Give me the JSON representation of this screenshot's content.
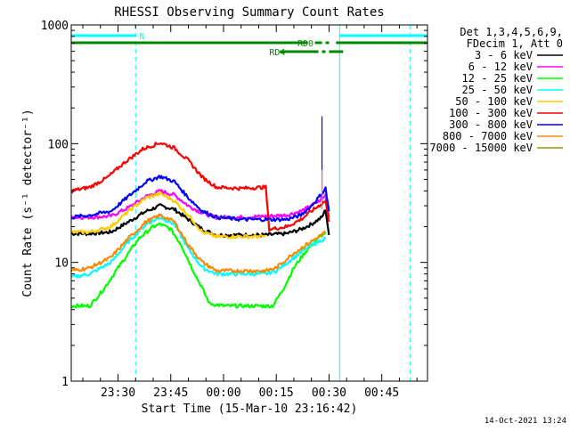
{
  "chart_data": {
    "type": "line",
    "title": "RHESSI Observing Summary Count Rates",
    "xlabel": "Start Time (15-Mar-10 23:16:42)",
    "ylabel": "Count Rate (s⁻¹ detector⁻¹)",
    "y_scale": "log",
    "ylim": [
      1,
      1000
    ],
    "y_ticks": [
      {
        "value": 1,
        "label": "1"
      },
      {
        "value": 10,
        "label": "10"
      },
      {
        "value": 100,
        "label": "100"
      },
      {
        "value": 1000,
        "label": "1000"
      }
    ],
    "xlim": [
      "23:16:42",
      "00:58:00"
    ],
    "x_ticks": [
      "23:30",
      "23:45",
      "00:00",
      "00:15",
      "00:30",
      "00:45"
    ],
    "x_minor_ticks": [
      "23:20",
      "23:25",
      "23:35",
      "23:40",
      "23:50",
      "23:55",
      "00:05",
      "00:10",
      "00:20",
      "00:25",
      "00:35",
      "00:40",
      "00:50",
      "00:55"
    ],
    "grid": false,
    "legend_position": "right",
    "legend_header": [
      "Det 1,3,4,5,6,9,",
      "FDecim 1, Att 0"
    ],
    "series": [
      {
        "name": "3 - 6 keV",
        "color": "#000000",
        "points": [
          [
            "23:16:42",
            17.5
          ],
          [
            "23:22",
            17.5
          ],
          [
            "23:28",
            18
          ],
          [
            "23:33",
            22
          ],
          [
            "23:38",
            27
          ],
          [
            "23:42",
            30
          ],
          [
            "23:46",
            28
          ],
          [
            "23:50",
            23
          ],
          [
            "23:54",
            19
          ],
          [
            "23:58",
            17
          ],
          [
            "00:05",
            17
          ],
          [
            "00:12",
            17
          ],
          [
            "00:18",
            17.5
          ],
          [
            "00:22",
            19
          ],
          [
            "00:25",
            21
          ],
          [
            "00:28",
            24
          ],
          [
            "00:29",
            28
          ],
          [
            "00:30",
            17
          ]
        ]
      },
      {
        "name": "6 - 12 keV",
        "color": "#ff00ff",
        "points": [
          [
            "23:16:42",
            24
          ],
          [
            "23:22",
            24
          ],
          [
            "23:28",
            24.5
          ],
          [
            "23:33",
            29
          ],
          [
            "23:38",
            36
          ],
          [
            "23:42",
            40
          ],
          [
            "23:46",
            37
          ],
          [
            "23:50",
            30
          ],
          [
            "23:54",
            26
          ],
          [
            "23:58",
            24
          ],
          [
            "00:05",
            24
          ],
          [
            "00:12",
            24.5
          ],
          [
            "00:18",
            25
          ],
          [
            "00:22",
            27
          ],
          [
            "00:25",
            30
          ],
          [
            "00:28",
            34
          ],
          [
            "00:29",
            37
          ],
          [
            "00:30",
            24
          ]
        ]
      },
      {
        "name": "12 - 25 keV",
        "color": "#00ff00",
        "points": [
          [
            "23:16:42",
            4.3
          ],
          [
            "23:22",
            4.3
          ],
          [
            "23:26",
            6
          ],
          [
            "23:30",
            9
          ],
          [
            "23:33",
            12
          ],
          [
            "23:36",
            16
          ],
          [
            "23:40",
            20
          ],
          [
            "23:42",
            21
          ],
          [
            "23:45",
            19
          ],
          [
            "23:48",
            14
          ],
          [
            "23:51",
            9
          ],
          [
            "23:54",
            6
          ],
          [
            "23:56",
            4.5
          ],
          [
            "00:00",
            4.3
          ],
          [
            "00:08",
            4.3
          ],
          [
            "00:14",
            4.3
          ],
          [
            "00:17",
            6
          ],
          [
            "00:20",
            9
          ],
          [
            "00:23",
            12
          ],
          [
            "00:26",
            15
          ],
          [
            "00:29",
            18
          ]
        ]
      },
      {
        "name": "25 - 50 keV",
        "color": "#00ffff",
        "points": [
          [
            "23:16:42",
            7.5
          ],
          [
            "23:22",
            8
          ],
          [
            "23:28",
            10
          ],
          [
            "23:33",
            15
          ],
          [
            "23:38",
            21
          ],
          [
            "23:42",
            24
          ],
          [
            "23:46",
            21
          ],
          [
            "23:50",
            13
          ],
          [
            "23:54",
            9
          ],
          [
            "23:58",
            8
          ],
          [
            "00:05",
            8
          ],
          [
            "00:12",
            8
          ],
          [
            "00:15",
            8.5
          ],
          [
            "00:20",
            11
          ],
          [
            "00:25",
            14
          ],
          [
            "00:29",
            16
          ]
        ]
      },
      {
        "name": "50 - 100 keV",
        "color": "#ffcc00",
        "points": [
          [
            "23:16:42",
            18
          ],
          [
            "23:22",
            18
          ],
          [
            "23:28",
            20
          ],
          [
            "23:33",
            27
          ],
          [
            "23:38",
            35
          ],
          [
            "23:42",
            38
          ],
          [
            "23:46",
            33
          ],
          [
            "23:50",
            25
          ],
          [
            "23:54",
            18
          ],
          [
            "23:58",
            16.5
          ],
          [
            "00:05",
            16.5
          ],
          [
            "00:12",
            16.5
          ]
        ]
      },
      {
        "name": "100 - 300 keV",
        "color": "#ff0000",
        "points": [
          [
            "23:16:42",
            40
          ],
          [
            "23:22",
            43
          ],
          [
            "23:27",
            52
          ],
          [
            "23:32",
            70
          ],
          [
            "23:37",
            90
          ],
          [
            "23:42",
            102
          ],
          [
            "23:46",
            92
          ],
          [
            "23:50",
            72
          ],
          [
            "23:54",
            52
          ],
          [
            "23:58",
            43
          ],
          [
            "00:05",
            42
          ],
          [
            "00:12",
            43
          ],
          [
            "00:13",
            19
          ],
          [
            "00:18",
            20
          ],
          [
            "00:22",
            23
          ],
          [
            "00:25",
            27
          ],
          [
            "00:29",
            33
          ],
          [
            "00:30",
            22
          ]
        ]
      },
      {
        "name": "300 - 800 keV",
        "color": "#0000ff",
        "points": [
          [
            "23:16:42",
            24
          ],
          [
            "23:22",
            25
          ],
          [
            "23:28",
            27
          ],
          [
            "23:33",
            36
          ],
          [
            "23:38",
            48
          ],
          [
            "23:42",
            53
          ],
          [
            "23:46",
            48
          ],
          [
            "23:50",
            35
          ],
          [
            "23:54",
            27
          ],
          [
            "23:58",
            24
          ],
          [
            "00:05",
            23
          ],
          [
            "00:12",
            23
          ],
          [
            "00:18",
            23
          ],
          [
            "00:22",
            25
          ],
          [
            "00:25",
            30
          ],
          [
            "00:28",
            38
          ],
          [
            "00:29",
            42
          ],
          [
            "00:30",
            27
          ]
        ]
      },
      {
        "name": "800 - 7000 keV",
        "color": "#ff8800",
        "points": [
          [
            "23:16:42",
            8.5
          ],
          [
            "23:22",
            9
          ],
          [
            "23:28",
            11
          ],
          [
            "23:33",
            16
          ],
          [
            "23:38",
            22
          ],
          [
            "23:42",
            25
          ],
          [
            "23:46",
            22
          ],
          [
            "23:50",
            14
          ],
          [
            "23:54",
            10
          ],
          [
            "23:58",
            8.5
          ],
          [
            "00:05",
            8.5
          ],
          [
            "00:12",
            8.5
          ],
          [
            "00:15",
            9
          ],
          [
            "00:20",
            12
          ],
          [
            "00:25",
            15
          ],
          [
            "00:29",
            18
          ]
        ]
      },
      {
        "name": "7000 - 15000 keV",
        "color": "#999900",
        "points": []
      }
    ],
    "spikes": [
      {
        "time": "00:28",
        "low": 30,
        "high": 170,
        "color": "#0000ff"
      },
      {
        "time": "00:28",
        "low": 28,
        "high": 60,
        "color": "#ff8800"
      }
    ],
    "status_flags": [
      {
        "label": "N",
        "color": "#00ffff",
        "label_at": "23:35",
        "segments": [
          [
            "23:16:42",
            "23:35"
          ],
          [
            "00:33",
            "00:58"
          ]
        ]
      },
      {
        "label": "RD0",
        "color": "#008800",
        "label_at": "00:20",
        "segments": [
          [
            "23:16:42",
            "00:24"
          ],
          [
            "00:26",
            "00:28"
          ],
          [
            "00:29",
            "00:30"
          ],
          [
            "00:32",
            "00:58"
          ]
        ]
      },
      {
        "label": "RD4",
        "color": "#008800",
        "label_at": "00:12",
        "segments": [
          [
            "00:16",
            "00:27"
          ],
          [
            "00:28",
            "00:29"
          ],
          [
            "00:30",
            "00:34"
          ]
        ]
      }
    ],
    "vertical_markers": [
      {
        "time": "23:35",
        "color": "#00ffff",
        "style": "dashed"
      },
      {
        "time": "00:33",
        "color": "#00ffff",
        "style": "solid"
      },
      {
        "time": "00:53",
        "color": "#00ffff",
        "style": "dashed"
      },
      {
        "time": "23:16:42",
        "color": "#00ffff",
        "style": "solid"
      }
    ],
    "footer_date": "14-Oct-2021 13:24"
  }
}
